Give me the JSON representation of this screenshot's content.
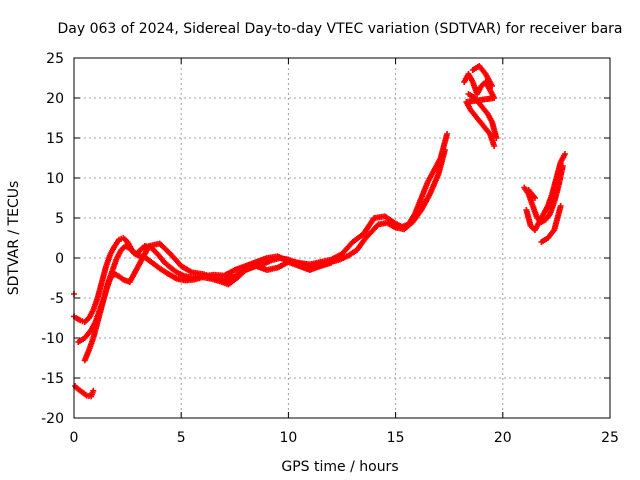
{
  "chart_data": {
    "type": "scatter",
    "title": "Day 063 of 2024, Sidereal Day-to-day VTEC variation (SDTVAR) for receiver bara",
    "xlabel": "GPS time / hours",
    "ylabel": "SDTVAR / TECUs",
    "xlim": [
      0,
      25
    ],
    "ylim": [
      -20,
      25
    ],
    "x_ticks": [
      0,
      5,
      10,
      15,
      20,
      25
    ],
    "y_ticks": [
      -20,
      -15,
      -10,
      -5,
      0,
      5,
      10,
      15,
      20,
      25
    ],
    "grid": true,
    "legend": "none",
    "marker": "plus",
    "color": "#ff0000",
    "series": [
      {
        "x": [
          0.0,
          0.1,
          0.3,
          0.5,
          0.7,
          0.9,
          1.1,
          1.3,
          1.5,
          1.7,
          1.9,
          2.1,
          2.3,
          2.5,
          2.7,
          2.9,
          3.1,
          3.3,
          3.6,
          3.9,
          4.2,
          4.5,
          4.8,
          5.1,
          5.5,
          6.0,
          6.5,
          7.0,
          7.5,
          8.0,
          8.5,
          9.0,
          9.5,
          10.0,
          10.5,
          11.0,
          11.5,
          12.0,
          12.5,
          13.0,
          13.5,
          14.0,
          14.5,
          15.0,
          15.3,
          15.6,
          15.9,
          16.2,
          16.5,
          16.8,
          17.1,
          17.4
        ],
        "y": [
          -7.3,
          -7.5,
          -7.8,
          -8.0,
          -7.5,
          -6.5,
          -5.0,
          -3.0,
          -1.0,
          0.5,
          1.5,
          2.3,
          2.5,
          2.0,
          1.0,
          0.5,
          1.0,
          1.5,
          1.3,
          0.5,
          -0.5,
          -1.2,
          -1.8,
          -2.2,
          -2.5,
          -2.3,
          -2.1,
          -2.2,
          -1.5,
          -1.0,
          -0.5,
          0.0,
          0.2,
          -0.4,
          -0.6,
          -0.8,
          -0.5,
          -0.2,
          0.5,
          2.0,
          3.0,
          5.0,
          5.2,
          4.3,
          3.9,
          4.2,
          5.5,
          7.5,
          9.5,
          11.0,
          12.5,
          15.5
        ]
      },
      {
        "x": [
          0.2,
          0.5,
          0.8,
          1.0,
          1.2,
          1.4,
          1.6,
          1.8,
          2.0,
          2.2,
          2.4,
          2.6,
          2.8,
          3.0,
          3.3,
          3.6,
          4.0,
          4.4,
          4.8,
          5.2,
          5.6,
          6.0,
          6.4,
          6.8,
          7.2,
          7.6,
          8.0,
          8.4,
          8.8,
          9.2,
          9.6,
          10.0,
          10.4,
          10.8,
          11.2,
          11.6,
          12.0,
          12.4,
          12.8,
          13.2,
          13.6,
          14.2,
          14.6,
          15.0,
          15.4,
          15.8,
          16.2,
          16.6,
          17.0,
          17.3
        ],
        "y": [
          -10.5,
          -10.0,
          -9.0,
          -8.0,
          -6.5,
          -5.0,
          -3.0,
          -1.5,
          0.0,
          1.0,
          1.5,
          1.2,
          0.6,
          0.3,
          0.1,
          -0.5,
          -1.3,
          -2.0,
          -2.6,
          -2.8,
          -2.7,
          -2.4,
          -2.6,
          -2.9,
          -3.3,
          -2.5,
          -1.5,
          -1.0,
          -0.8,
          -0.3,
          0.0,
          -0.2,
          -0.6,
          -0.9,
          -1.2,
          -0.9,
          -0.5,
          -0.2,
          0.3,
          1.0,
          2.5,
          4.2,
          4.4,
          3.8,
          3.6,
          4.5,
          6.0,
          8.0,
          10.5,
          13.5
        ]
      },
      {
        "x": [
          0.5,
          0.7,
          0.9,
          1.1,
          1.3,
          1.5,
          1.7,
          1.9,
          2.1,
          2.3,
          2.6,
          3.0,
          3.5,
          4.0,
          4.5,
          5.0,
          5.5,
          6.0,
          6.5,
          7.0,
          7.5,
          8.0,
          8.5,
          9.0,
          9.5,
          10.0,
          10.5,
          11.0,
          11.5,
          12.0
        ],
        "y": [
          -12.8,
          -11.5,
          -10.0,
          -8.0,
          -6.0,
          -4.0,
          -2.5,
          -2.0,
          -2.3,
          -2.7,
          -3.0,
          -1.0,
          1.5,
          1.8,
          0.5,
          -1.0,
          -1.8,
          -2.0,
          -2.4,
          -2.8,
          -2.3,
          -1.5,
          -1.0,
          -1.5,
          -1.2,
          -0.5,
          -1.0,
          -1.5,
          -1.0,
          -0.6
        ]
      },
      {
        "x": [
          0.0,
          0.05,
          0.1,
          0.6,
          0.8,
          0.9
        ],
        "y": [
          -4.5,
          -16.0,
          -16.2,
          -17.2,
          -17.3,
          -16.6
        ]
      },
      {
        "x": [
          18.2,
          18.4,
          18.6,
          18.8,
          19.0,
          19.2,
          19.4,
          19.6,
          18.3,
          18.5,
          18.8,
          19.1,
          19.4,
          19.6,
          18.4,
          18.7,
          19.0,
          19.3,
          19.5,
          19.7,
          18.6,
          18.9,
          19.2,
          19.5
        ],
        "y": [
          22.0,
          23.0,
          22.0,
          20.5,
          21.5,
          22.0,
          21.0,
          20.0,
          19.5,
          18.5,
          17.5,
          16.5,
          15.5,
          14.0,
          20.5,
          20.0,
          19.0,
          18.0,
          17.0,
          15.0,
          23.5,
          24.0,
          23.0,
          21.5
        ]
      },
      {
        "x": [
          21.0,
          21.2,
          21.4,
          21.6,
          21.8,
          22.0,
          22.2,
          22.4,
          22.6,
          22.8,
          21.1,
          21.3,
          21.5,
          21.7,
          21.9,
          22.1,
          22.3,
          22.5,
          22.7,
          22.9,
          21.2,
          21.5,
          21.8,
          22.1,
          22.4,
          22.7
        ],
        "y": [
          8.8,
          8.0,
          6.5,
          5.0,
          4.5,
          4.8,
          5.5,
          7.0,
          9.0,
          11.5,
          6.0,
          4.0,
          3.5,
          4.5,
          5.5,
          6.5,
          8.0,
          10.0,
          12.0,
          13.0,
          8.5,
          7.5,
          2.0,
          2.5,
          3.5,
          6.5
        ]
      }
    ]
  }
}
